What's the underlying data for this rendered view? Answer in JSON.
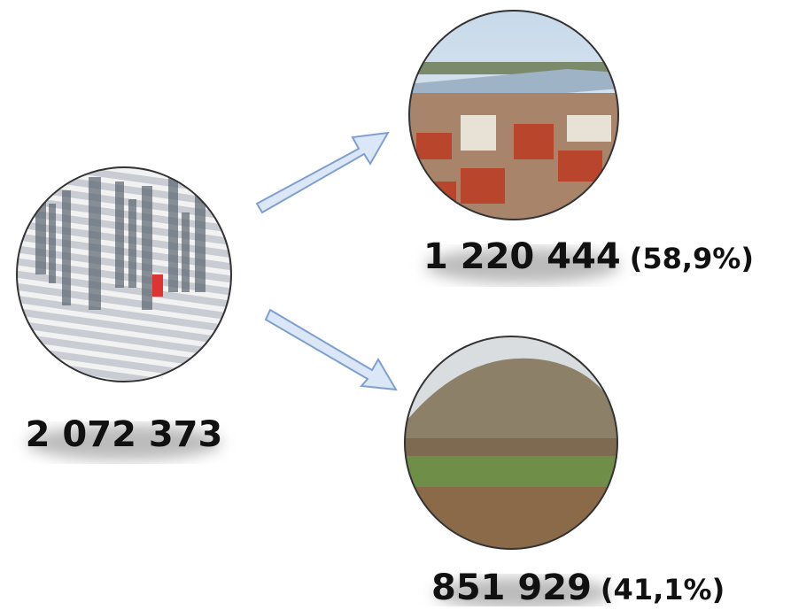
{
  "nodes": [
    {
      "value": "2 072 373"
    },
    {
      "value": "1 220 444",
      "share": "(58,9%)"
    },
    {
      "value": "851 929",
      "share": "(41,1%)"
    }
  ]
}
